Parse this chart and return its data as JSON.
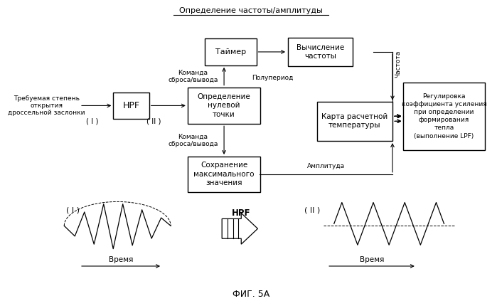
{
  "bg_color": "#ffffff",
  "title": "ФИГ. 5А",
  "top_label": "Определение частоты/амплитуды",
  "input_label": "Требуемая степень\nоткрытия\nдроссельной заслонки",
  "label_I_top": "( I )",
  "label_II_top": "( II )",
  "hpf_label": "HPF",
  "timer_label": "Таймер",
  "freq_calc_label": "Вычисление\nчастоты",
  "zero_det_label": "Определение\nнулевой\nточки",
  "map_label": "Карта расчетной\nтемпературы",
  "max_hold_label": "Сохранение\nмаксимального\nзначения",
  "output_label": "Регулировка\nкоэффициента усиления\nпри определении\nформирования\nтепла\n(выполнение LPF)",
  "cmd1_label": "Команда\nсброса/вывода",
  "cmd2_label": "Команда\nсброса/вывода",
  "half_period_label": "Полупериод",
  "freq_label": "Частота",
  "amplitude_label": "Амплитуда",
  "time_label": "Время",
  "hpf_mid_label": "HPF",
  "label_I_bot": "( I )",
  "label_II_bot": "( II )"
}
